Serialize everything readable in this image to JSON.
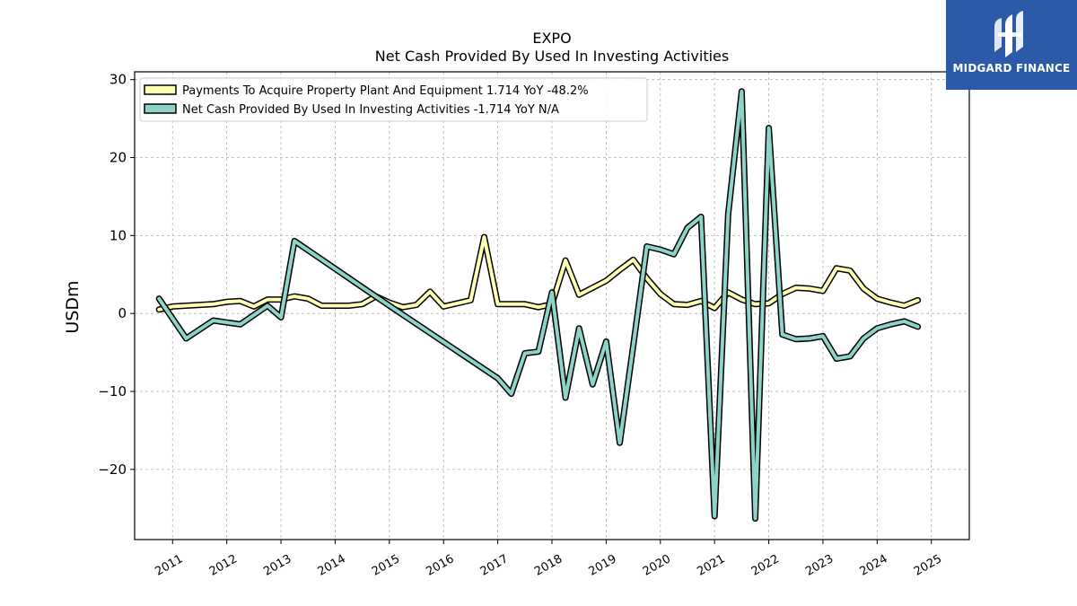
{
  "title": "EXPO",
  "subtitle": "Net Cash Provided By Used In Investing Activities",
  "ylabel": "USDm",
  "logo": {
    "text": "MIDGARD FINANCE",
    "icon": "midgard-logo-icon",
    "color": "#2a5aa8"
  },
  "chart_data": {
    "type": "line",
    "title": "EXPO",
    "subtitle": "Net Cash Provided By Used In Investing Activities",
    "ylabel": "USDm",
    "xlabel": "",
    "xlim": [
      2010.3,
      2025.7
    ],
    "ylim": [
      -29,
      31
    ],
    "yticks": [
      30,
      20,
      10,
      0,
      -10,
      -20
    ],
    "ytick_labels": [
      "30",
      "20",
      "10",
      "0",
      "−10",
      "−20"
    ],
    "xticks": [
      2011,
      2012,
      2013,
      2014,
      2015,
      2016,
      2017,
      2018,
      2019,
      2020,
      2021,
      2022,
      2023,
      2024,
      2025
    ],
    "xtick_labels": [
      "2011",
      "2012",
      "2013",
      "2014",
      "2015",
      "2016",
      "2017",
      "2018",
      "2019",
      "2020",
      "2021",
      "2022",
      "2023",
      "2024",
      "2025"
    ],
    "grid": true,
    "legend_position": "top-left",
    "series": [
      {
        "name": "Payments To Acquire Property Plant And Equipment  1.714 YoY -48.2%",
        "color": "#ffffb3",
        "x": [
          2010.75,
          2011.0,
          2011.25,
          2011.5,
          2011.75,
          2012.0,
          2012.25,
          2012.5,
          2012.75,
          2013.0,
          2013.25,
          2013.5,
          2013.75,
          2014.0,
          2014.25,
          2014.5,
          2014.75,
          2015.0,
          2015.25,
          2015.5,
          2015.75,
          2016.0,
          2016.25,
          2016.5,
          2016.75,
          2017.0,
          2017.25,
          2017.5,
          2017.75,
          2018.0,
          2018.25,
          2018.5,
          2018.75,
          2019.0,
          2019.25,
          2019.5,
          2019.75,
          2020.0,
          2020.25,
          2020.5,
          2020.75,
          2021.0,
          2021.25,
          2021.5,
          2021.75,
          2022.0,
          2022.25,
          2022.5,
          2022.75,
          2023.0,
          2023.25,
          2023.5,
          2023.75,
          2024.0,
          2024.25,
          2024.5,
          2024.75
        ],
        "y": [
          0.5,
          0.9,
          1.0,
          1.1,
          1.2,
          1.5,
          1.6,
          0.9,
          1.8,
          1.8,
          2.2,
          1.9,
          1.0,
          1.0,
          1.0,
          1.2,
          2.2,
          1.4,
          0.8,
          1.1,
          2.8,
          0.9,
          1.3,
          1.7,
          9.8,
          1.2,
          1.2,
          1.2,
          0.8,
          1.2,
          6.8,
          2.4,
          3.3,
          4.2,
          5.6,
          6.9,
          4.5,
          2.5,
          1.2,
          1.1,
          1.6,
          0.7,
          2.7,
          1.8,
          1.2,
          1.3,
          2.5,
          3.3,
          3.2,
          2.9,
          5.8,
          5.5,
          3.2,
          1.9,
          1.4,
          1.0,
          1.7
        ]
      },
      {
        "name": "Net Cash Provided By Used In Investing Activities  -1.714 YoY N/A",
        "color": "#8dd3c7",
        "x": [
          2010.75,
          2011.25,
          2011.75,
          2012.25,
          2012.75,
          2013.0,
          2013.25,
          2015.0,
          2017.0,
          2017.25,
          2017.5,
          2017.75,
          2018.0,
          2018.25,
          2018.5,
          2018.75,
          2019.0,
          2019.25,
          2019.5,
          2019.75,
          2020.0,
          2020.25,
          2020.5,
          2020.75,
          2021.0,
          2021.25,
          2021.5,
          2021.75,
          2022.0,
          2022.25,
          2022.5,
          2022.75,
          2023.0,
          2023.25,
          2023.5,
          2023.75,
          2024.0,
          2024.25,
          2024.5,
          2024.75
        ],
        "y": [
          1.9,
          -3.2,
          -0.9,
          -1.4,
          1.0,
          -0.5,
          9.3,
          1.0,
          -8.3,
          -10.3,
          -5.1,
          -4.9,
          2.7,
          -10.8,
          -1.9,
          -9.1,
          -3.6,
          -16.6,
          -4.1,
          8.6,
          8.2,
          7.6,
          11.0,
          12.4,
          -26.0,
          12.7,
          28.5,
          -26.3,
          23.8,
          -2.7,
          -3.3,
          -3.2,
          -2.9,
          -5.8,
          -5.5,
          -3.2,
          -1.9,
          -1.4,
          -1.0,
          -1.7
        ]
      }
    ]
  }
}
